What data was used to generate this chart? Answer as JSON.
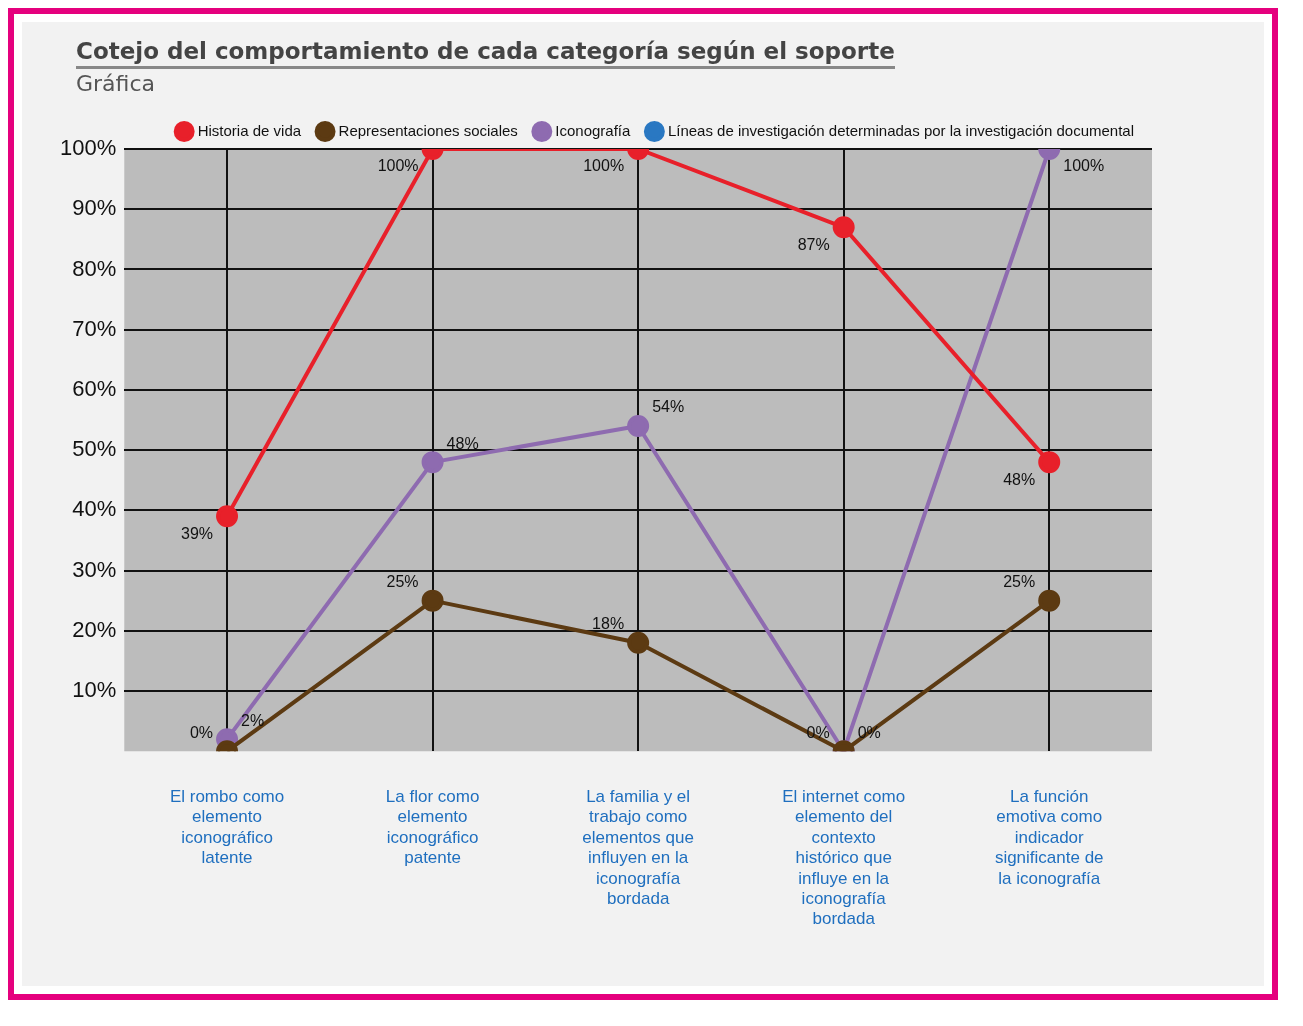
{
  "chart_data": {
    "type": "line",
    "title": "Cotejo del comportamiento de cada categoría según el soporte",
    "subtitle": "Gráfica",
    "categories": [
      "El rombo como elemento iconográfico latente",
      "La flor como elemento iconográfico patente",
      "La familia y el trabajo como elementos que influyen en la iconografía bordada",
      "El internet como elemento del contexto histórico que influye en la iconografía bordada",
      "La función emotiva como indicador significante de la iconografía"
    ],
    "series": [
      {
        "name": "Historia de vida",
        "color": "#e8202a",
        "values": [
          39,
          100,
          100,
          87,
          48
        ],
        "value_labels": [
          "39%",
          "100%",
          "100%",
          "87%",
          "48%"
        ]
      },
      {
        "name": "Representaciones sociales",
        "color": "#5c3a12",
        "values": [
          0,
          25,
          18,
          0,
          25
        ],
        "value_labels": [
          "0%",
          "25%",
          "18%",
          "0%",
          "25%"
        ]
      },
      {
        "name": "Iconografía",
        "color": "#8e6bb0",
        "values": [
          2,
          48,
          54,
          0,
          100
        ],
        "value_labels": [
          "2%",
          "48%",
          "54%",
          "0%",
          "100%"
        ]
      },
      {
        "name": "Líneas de investigación determinadas por la investigación documental",
        "color": "#2a78c2",
        "values": [
          null,
          null,
          null,
          null,
          null
        ]
      }
    ],
    "ylim": [
      0,
      100
    ],
    "yticks": [
      {
        "value": 10,
        "label": "10%"
      },
      {
        "value": 20,
        "label": "20%"
      },
      {
        "value": 30,
        "label": "30%"
      },
      {
        "value": 40,
        "label": "40%"
      },
      {
        "value": 50,
        "label": "50%"
      },
      {
        "value": 60,
        "label": "60%"
      },
      {
        "value": 70,
        "label": "70%"
      },
      {
        "value": 80,
        "label": "80%"
      },
      {
        "value": 90,
        "label": "90%"
      },
      {
        "value": 100,
        "label": "100%"
      }
    ],
    "grid": true,
    "legend": "top right",
    "marker": "circle",
    "line_style": "solid"
  }
}
